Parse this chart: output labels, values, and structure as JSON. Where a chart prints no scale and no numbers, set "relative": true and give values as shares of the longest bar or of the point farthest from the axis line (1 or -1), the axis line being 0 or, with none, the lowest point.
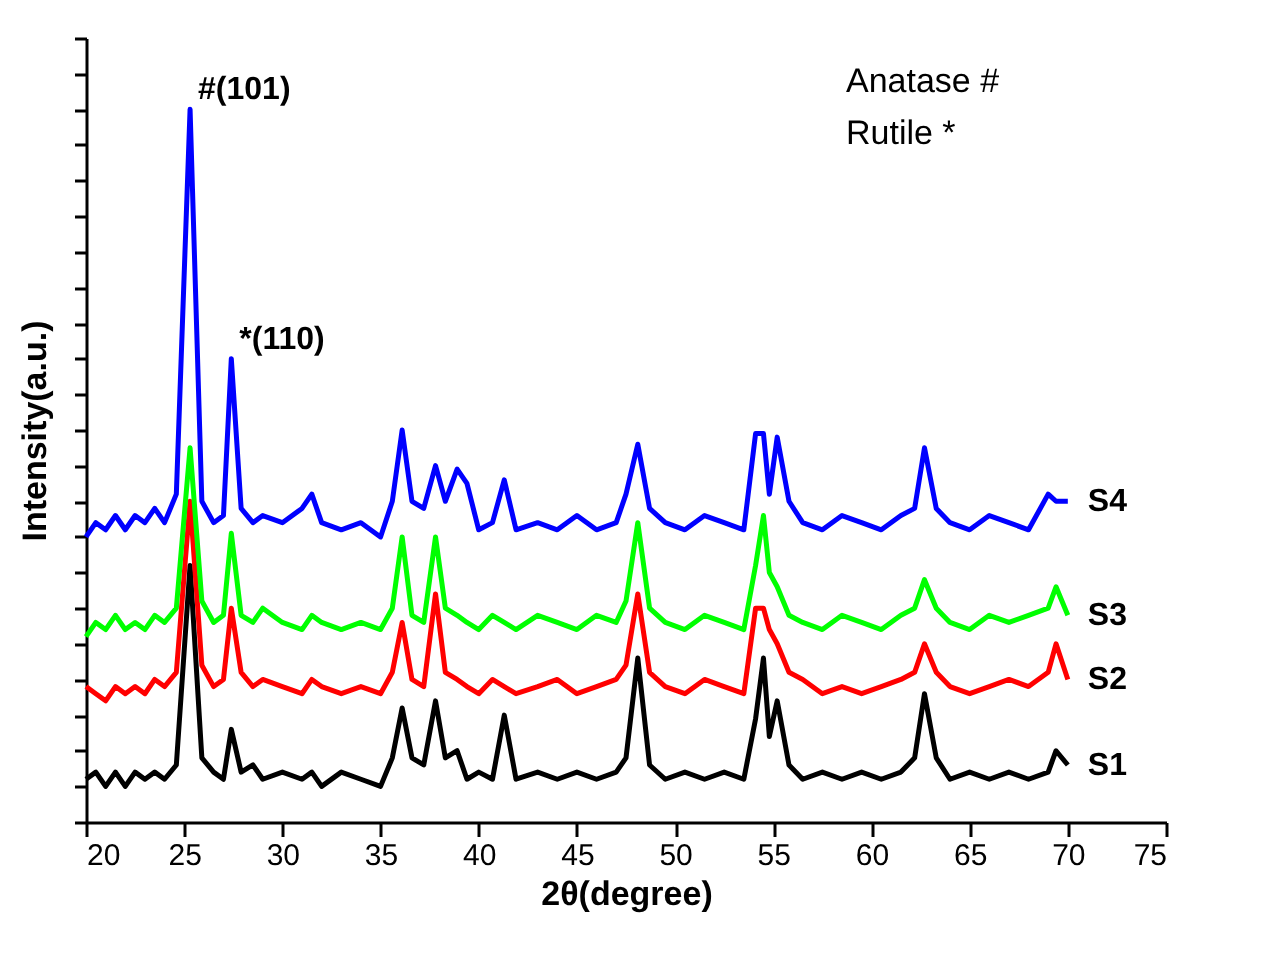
{
  "chart_data": {
    "type": "line",
    "relative": true,
    "xlabel": "2θ(degree)",
    "ylabel": "Intensity(a.u.)",
    "xlim": [
      20,
      75
    ],
    "xticks": [
      20,
      25,
      30,
      35,
      40,
      45,
      50,
      55,
      60,
      65,
      70,
      75
    ],
    "grid": false,
    "line_style": "solid",
    "annotations": [
      {
        "text": "#(101)",
        "x": 25.3,
        "y": 1.0
      },
      {
        "text": "*(110)",
        "x": 27.4,
        "y": 0.65
      },
      "Anatase #",
      "Rutile *"
    ],
    "x": [
      20,
      20.5,
      21,
      21.5,
      22,
      22.5,
      23,
      23.5,
      24,
      24.6,
      25.3,
      25.9,
      26.5,
      27,
      27.4,
      27.9,
      28.5,
      29,
      30,
      31,
      31.5,
      32,
      33,
      34,
      35,
      35.6,
      36.1,
      36.6,
      37.2,
      37.8,
      38.3,
      38.9,
      39.4,
      40,
      40.7,
      41.3,
      41.9,
      43,
      44,
      45,
      46,
      47,
      47.5,
      48.1,
      48.7,
      49.5,
      50.5,
      51.5,
      52.5,
      53.5,
      54.1,
      54.5,
      54.8,
      55.2,
      55.8,
      56.5,
      57.5,
      58.5,
      59.5,
      60.5,
      61.5,
      62.2,
      62.7,
      63.3,
      64,
      65,
      66,
      67,
      68,
      69,
      69.4,
      70
    ],
    "series": [
      {
        "name": "S1",
        "color": "#000000",
        "values": [
          0.06,
          0.07,
          0.05,
          0.07,
          0.05,
          0.07,
          0.06,
          0.07,
          0.06,
          0.08,
          0.36,
          0.09,
          0.07,
          0.06,
          0.13,
          0.07,
          0.08,
          0.06,
          0.07,
          0.06,
          0.07,
          0.05,
          0.07,
          0.06,
          0.05,
          0.09,
          0.16,
          0.09,
          0.08,
          0.17,
          0.09,
          0.1,
          0.06,
          0.07,
          0.06,
          0.15,
          0.06,
          0.07,
          0.06,
          0.07,
          0.06,
          0.07,
          0.09,
          0.23,
          0.08,
          0.06,
          0.07,
          0.06,
          0.07,
          0.06,
          0.145,
          0.23,
          0.12,
          0.17,
          0.08,
          0.06,
          0.07,
          0.06,
          0.07,
          0.06,
          0.07,
          0.09,
          0.18,
          0.09,
          0.06,
          0.07,
          0.06,
          0.07,
          0.06,
          0.07,
          0.1,
          0.08
        ]
      },
      {
        "name": "S2",
        "color": "#ff0000",
        "values": [
          0.19,
          0.18,
          0.17,
          0.19,
          0.18,
          0.19,
          0.18,
          0.2,
          0.19,
          0.21,
          0.45,
          0.22,
          0.19,
          0.2,
          0.3,
          0.21,
          0.19,
          0.2,
          0.19,
          0.18,
          0.2,
          0.19,
          0.18,
          0.19,
          0.18,
          0.21,
          0.28,
          0.2,
          0.19,
          0.32,
          0.21,
          0.2,
          0.19,
          0.18,
          0.2,
          0.19,
          0.18,
          0.19,
          0.2,
          0.18,
          0.19,
          0.2,
          0.22,
          0.32,
          0.21,
          0.19,
          0.18,
          0.2,
          0.19,
          0.18,
          0.3,
          0.3,
          0.27,
          0.25,
          0.21,
          0.2,
          0.18,
          0.19,
          0.18,
          0.19,
          0.2,
          0.21,
          0.25,
          0.21,
          0.19,
          0.18,
          0.19,
          0.2,
          0.19,
          0.21,
          0.25,
          0.2
        ]
      },
      {
        "name": "S3",
        "color": "#00ff00",
        "values": [
          0.26,
          0.28,
          0.27,
          0.29,
          0.27,
          0.28,
          0.27,
          0.29,
          0.28,
          0.3,
          0.525,
          0.31,
          0.28,
          0.29,
          0.405,
          0.29,
          0.28,
          0.3,
          0.28,
          0.27,
          0.29,
          0.28,
          0.27,
          0.28,
          0.27,
          0.3,
          0.4,
          0.29,
          0.28,
          0.4,
          0.3,
          0.29,
          0.28,
          0.27,
          0.29,
          0.28,
          0.27,
          0.29,
          0.28,
          0.27,
          0.29,
          0.28,
          0.31,
          0.42,
          0.3,
          0.28,
          0.27,
          0.29,
          0.28,
          0.27,
          0.36,
          0.43,
          0.35,
          0.33,
          0.29,
          0.28,
          0.27,
          0.29,
          0.28,
          0.27,
          0.29,
          0.3,
          0.34,
          0.3,
          0.28,
          0.27,
          0.29,
          0.28,
          0.29,
          0.3,
          0.33,
          0.29
        ]
      },
      {
        "name": "S4",
        "color": "#0000ff",
        "values": [
          0.4,
          0.42,
          0.41,
          0.43,
          0.41,
          0.43,
          0.42,
          0.44,
          0.42,
          0.46,
          1.0,
          0.45,
          0.42,
          0.43,
          0.65,
          0.44,
          0.42,
          0.43,
          0.42,
          0.44,
          0.46,
          0.42,
          0.41,
          0.42,
          0.4,
          0.45,
          0.55,
          0.45,
          0.44,
          0.5,
          0.45,
          0.495,
          0.475,
          0.41,
          0.42,
          0.48,
          0.41,
          0.42,
          0.41,
          0.43,
          0.41,
          0.42,
          0.46,
          0.53,
          0.44,
          0.42,
          0.41,
          0.43,
          0.42,
          0.41,
          0.545,
          0.545,
          0.46,
          0.54,
          0.45,
          0.42,
          0.41,
          0.43,
          0.42,
          0.41,
          0.43,
          0.44,
          0.525,
          0.44,
          0.42,
          0.41,
          0.43,
          0.42,
          0.41,
          0.46,
          0.45,
          0.45
        ]
      }
    ]
  }
}
